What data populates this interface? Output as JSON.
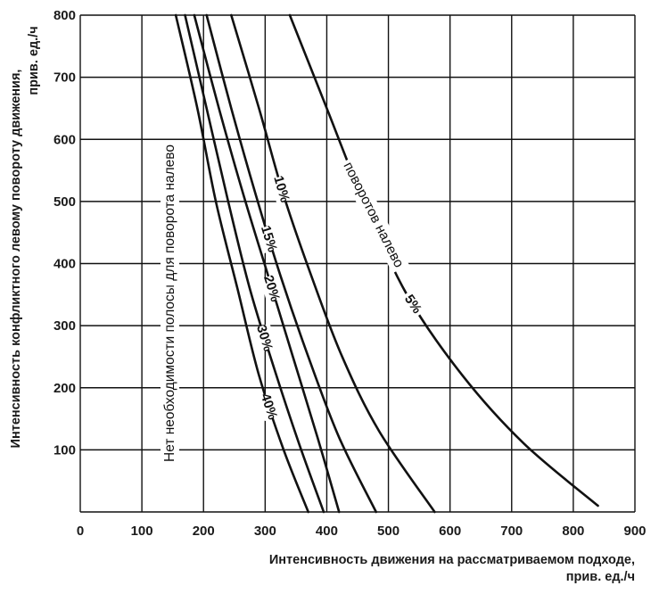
{
  "chart_data": {
    "type": "line",
    "xlabel_line1": "Интенсивность движения на рассматриваемом подходе,",
    "xlabel_line2": "прив. ед./ч",
    "ylabel_line1": "Интенсивность конфликтного левому повороту движения,",
    "ylabel_line2": "прив. ед./ч",
    "xlim": [
      0,
      900
    ],
    "ylim": [
      0,
      800
    ],
    "x_ticks": [
      "0",
      "100",
      "200",
      "300",
      "400",
      "500",
      "600",
      "700",
      "800",
      "900"
    ],
    "y_ticks": [
      "800",
      "700",
      "600",
      "500",
      "400",
      "300",
      "200",
      "100"
    ],
    "grid": true,
    "annotation": "Нет необходимости полосы для поворота налево",
    "series_note": "поворотов налево",
    "series": [
      {
        "name": "5%",
        "x": [
          340,
          400,
          460,
          530,
          620,
          720,
          840
        ],
        "y": [
          800,
          650,
          500,
          350,
          220,
          110,
          10
        ]
      },
      {
        "name": "10%",
        "x": [
          245,
          290,
          330,
          375,
          425,
          485,
          575
        ],
        "y": [
          800,
          650,
          510,
          380,
          250,
          130,
          0
        ]
      },
      {
        "name": "15%",
        "x": [
          205,
          245,
          285,
          325,
          370,
          420,
          480
        ],
        "y": [
          800,
          650,
          510,
          380,
          250,
          120,
          0
        ]
      },
      {
        "name": "20%",
        "x": [
          185,
          225,
          265,
          305,
          345,
          385,
          420
        ],
        "y": [
          800,
          650,
          510,
          380,
          250,
          120,
          0
        ]
      },
      {
        "name": "30%",
        "x": [
          170,
          205,
          240,
          275,
          315,
          355,
          395
        ],
        "y": [
          800,
          650,
          500,
          360,
          230,
          110,
          0
        ]
      },
      {
        "name": "40%",
        "x": [
          155,
          190,
          220,
          255,
          290,
          330,
          370
        ],
        "y": [
          800,
          650,
          500,
          360,
          220,
          100,
          0
        ]
      }
    ]
  }
}
